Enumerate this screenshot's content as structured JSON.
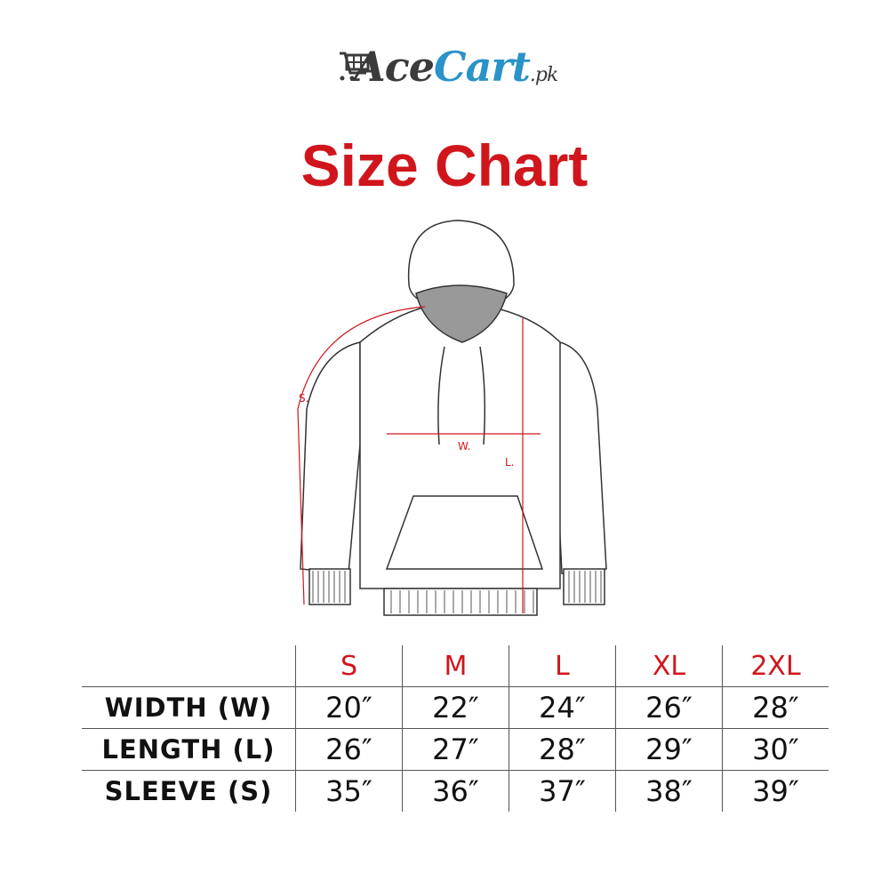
{
  "logo": {
    "part1": "Ace",
    "part2": "Cart",
    "suffix": ".pk",
    "icon": "shopping-cart-icon"
  },
  "title": "Size Chart",
  "diagram": {
    "labels": {
      "sleeve": "S.",
      "width": "W.",
      "length": "L."
    }
  },
  "table": {
    "headers": [
      "S",
      "M",
      "L",
      "XL",
      "2XL"
    ],
    "rows": [
      {
        "label": "WIDTH (W)",
        "values": [
          "20″",
          "22″",
          "24″",
          "26″",
          "28″"
        ]
      },
      {
        "label": "LENGTH (L)",
        "values": [
          "26″",
          "27″",
          "28″",
          "29″",
          "30″"
        ]
      },
      {
        "label": "SLEEVE (S)",
        "values": [
          "35″",
          "36″",
          "37″",
          "38″",
          "39″"
        ]
      }
    ]
  },
  "colors": {
    "title": "#d0161c",
    "logo_blue": "#2a93c7",
    "logo_dark": "#3b3b3b",
    "measure": "#d0161c"
  }
}
